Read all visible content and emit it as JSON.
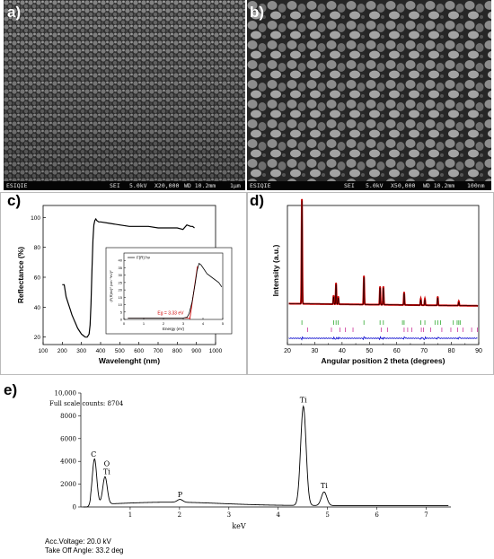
{
  "panels": {
    "a": {
      "letter": "a)",
      "info": {
        "brand": "ESIQIE",
        "mode": "SEI",
        "voltage": "5.0kV",
        "mag": "X20,000",
        "wd": "WD 10.2mm",
        "scale": "1μm"
      }
    },
    "b": {
      "letter": "b)",
      "info": {
        "brand": "ESIQIE",
        "mode": "SEI",
        "voltage": "5.0kV",
        "mag": "X50,000",
        "wd": "WD 10.2mm",
        "scale": "100nm"
      }
    },
    "c": {
      "letter": "c)"
    },
    "d": {
      "letter": "d)"
    },
    "e": {
      "letter": "e)"
    }
  },
  "chart_data": [
    {
      "id": "c-main",
      "type": "line",
      "xlabel": "Wavelenght (nm)",
      "ylabel": "Reflectance (%)",
      "xlim": [
        100,
        1000
      ],
      "ylim": [
        15,
        108
      ],
      "xticks": [
        100,
        200,
        300,
        400,
        500,
        600,
        700,
        800,
        900,
        1000
      ],
      "yticks": [
        20,
        40,
        60,
        80,
        100
      ],
      "x": [
        200,
        210,
        220,
        230,
        240,
        250,
        260,
        270,
        280,
        290,
        300,
        310,
        320,
        330,
        340,
        345,
        350,
        355,
        360,
        365,
        370,
        375,
        380,
        390,
        400,
        450,
        500,
        550,
        600,
        650,
        700,
        750,
        800,
        830,
        850,
        870,
        880,
        890
      ],
      "y": [
        55,
        55,
        47,
        43,
        39,
        35,
        32,
        29,
        26,
        24,
        22,
        21,
        20,
        20,
        22,
        28,
        42,
        65,
        85,
        95,
        98,
        99,
        98,
        97,
        97,
        96,
        95,
        94,
        94,
        94,
        93,
        93,
        93,
        92,
        95,
        94,
        94,
        93
      ],
      "color": "#000000"
    },
    {
      "id": "c-inset",
      "type": "line",
      "legend": [
        "F(R) hν"
      ],
      "xlabel": "Energy (eV)",
      "ylabel": "(F(R)hν)² (cm⁻¹eV)²",
      "xlim": [
        0,
        5
      ],
      "ylim": [
        0,
        45
      ],
      "xticks": [
        0,
        1,
        2,
        3,
        4,
        5
      ],
      "yticks": [
        0,
        5,
        10,
        15,
        20,
        25,
        30,
        35,
        40
      ],
      "x": [
        0.2,
        1,
        2,
        3,
        3.2,
        3.3,
        3.45,
        3.6,
        3.7,
        3.8,
        3.9,
        4.0,
        4.2,
        4.5,
        4.8,
        4.95
      ],
      "y": [
        1,
        1,
        1,
        1,
        1.5,
        4,
        12,
        24,
        33,
        38,
        37,
        35,
        31,
        28,
        25,
        22
      ],
      "annotation": "Eg = 3.33 eV",
      "eg_value": 3.33,
      "fit_color": "#d00000"
    },
    {
      "id": "d-xrd",
      "type": "line",
      "xlabel": "Angular position 2 theta (degrees)",
      "ylabel": "Intensity (a.u.)",
      "xlim": [
        20,
        90
      ],
      "xticks": [
        20,
        25,
        30,
        35,
        40,
        45,
        50,
        55,
        60,
        65,
        70,
        75,
        80,
        85,
        90
      ],
      "ylim": [
        0,
        100
      ],
      "peaks_2theta": [
        25.3,
        36.9,
        37.8,
        38.6,
        48.0,
        53.9,
        55.1,
        62.7,
        68.8,
        70.3,
        75.0,
        82.7
      ],
      "peaks_intensity": [
        100,
        8,
        20,
        7,
        27,
        17,
        17,
        12,
        6,
        6,
        8,
        4
      ],
      "baseline": 10,
      "green_ticks": [
        25.3,
        36.9,
        37.8,
        38.6,
        48.0,
        53.9,
        55.1,
        62.1,
        62.7,
        68.8,
        70.3,
        74.0,
        75.0,
        76.0,
        80.7,
        82.1,
        82.7,
        83.2
      ],
      "pink_ticks": [
        27.4,
        36.1,
        39.2,
        41.2,
        44.0,
        54.3,
        56.6,
        62.7,
        64.0,
        65.5,
        69.0,
        69.8,
        72.4,
        76.5,
        79.8,
        82.3,
        84.2,
        87.4,
        89.5
      ],
      "colors": {
        "obs": "#000000",
        "calc": "#cc0000",
        "diff": "#0000cc",
        "green": "#33aa33",
        "pink": "#cc3399"
      }
    },
    {
      "id": "e-eds",
      "type": "line",
      "title": "Full scale counts: 8704",
      "xlabel": "keV",
      "xlim": [
        0,
        7.5
      ],
      "xticks": [
        1,
        2,
        3,
        4,
        5,
        6,
        7
      ],
      "ylim": [
        0,
        10000
      ],
      "yticks": [
        0,
        2000,
        4000,
        6000,
        8000,
        10000
      ],
      "ytick_labels": [
        "0",
        "2000",
        "4000",
        "6000",
        "8000",
        "10,000"
      ],
      "peaks": [
        {
          "label": "C",
          "kev": 0.277,
          "counts": 4000
        },
        {
          "label": "O\nTi",
          "kev": 0.49,
          "counts": 2400
        },
        {
          "label": "P",
          "kev": 2.01,
          "counts": 250
        },
        {
          "label": "Ti",
          "kev": 4.51,
          "counts": 8704
        },
        {
          "label": "Ti",
          "kev": 4.93,
          "counts": 1200
        }
      ],
      "color": "#000000"
    }
  ],
  "eds_meta": {
    "voltage": "Acc.Voltage: 20.0 kV",
    "angle": "Take Off Angle: 33.2 deg"
  }
}
